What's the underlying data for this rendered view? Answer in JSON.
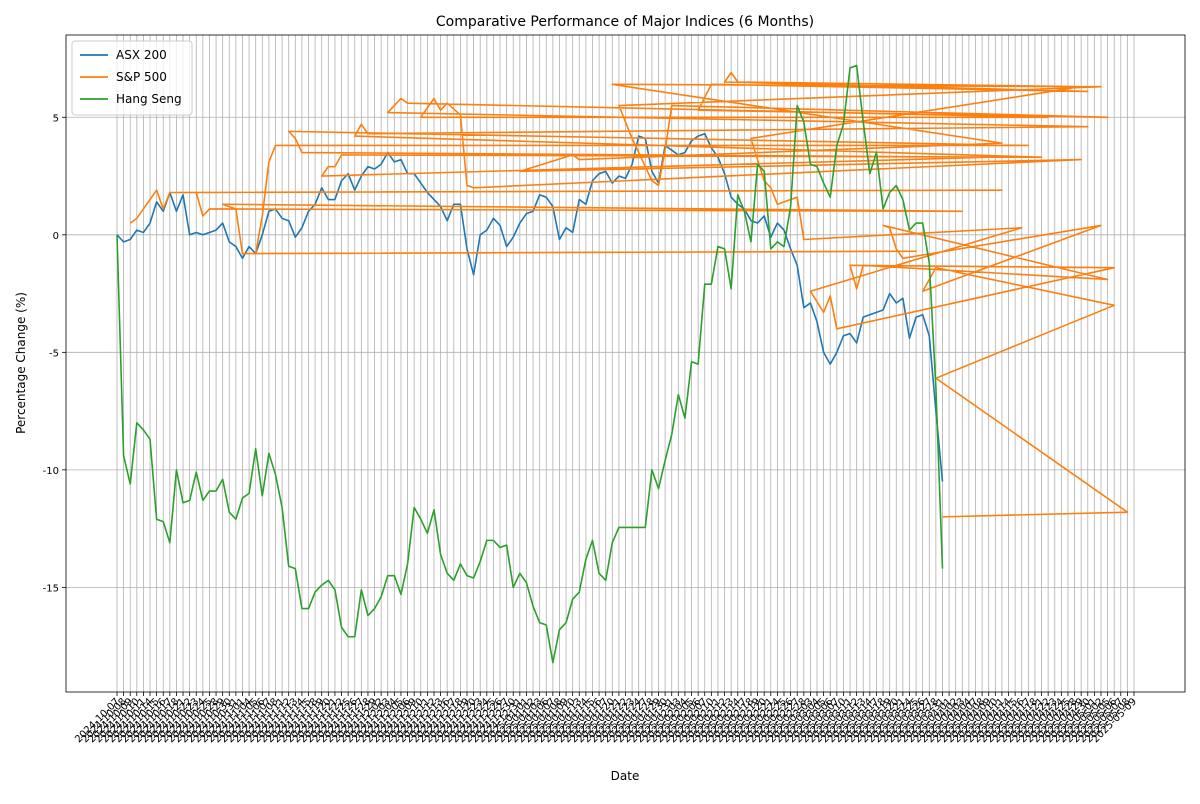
{
  "chart_data": {
    "type": "line",
    "title": "Comparative Performance of Major Indices (6 Months)",
    "x_label": "Date",
    "y_label": "Percentage Change (%)",
    "categories": [
      "2024-10-07",
      "2024-10-08",
      "2024-10-09",
      "2024-10-10",
      "2024-10-11",
      "2024-10-14",
      "2024-10-15",
      "2024-10-16",
      "2024-10-17",
      "2024-10-18",
      "2024-10-21",
      "2024-10-22",
      "2024-10-23",
      "2024-10-24",
      "2024-10-25",
      "2024-10-28",
      "2024-10-29",
      "2024-10-30",
      "2024-10-31",
      "2024-11-01",
      "2024-11-04",
      "2024-11-05",
      "2024-11-06",
      "2024-11-07",
      "2024-11-08",
      "2024-11-11",
      "2024-11-12",
      "2024-11-13",
      "2024-11-14",
      "2024-11-15",
      "2024-11-18",
      "2024-11-19",
      "2024-11-20",
      "2024-11-21",
      "2024-11-22",
      "2024-11-25",
      "2024-11-26",
      "2024-11-27",
      "2024-11-28",
      "2024-11-29",
      "2024-12-02",
      "2024-12-03",
      "2024-12-04",
      "2024-12-05",
      "2024-12-06",
      "2024-12-09",
      "2024-12-10",
      "2024-12-11",
      "2024-12-12",
      "2024-12-13",
      "2024-12-16",
      "2024-12-17",
      "2024-12-18",
      "2024-12-19",
      "2024-12-20",
      "2024-12-23",
      "2024-12-24",
      "2024-12-25",
      "2024-12-26",
      "2024-12-27",
      "2024-12-30",
      "2024-12-31",
      "2025-01-01",
      "2025-01-02",
      "2025-01-03",
      "2025-01-06",
      "2025-01-07",
      "2025-01-08",
      "2025-01-09",
      "2025-01-10",
      "2025-01-13",
      "2025-01-14",
      "2025-01-15",
      "2025-01-16",
      "2025-01-17",
      "2025-01-20",
      "2025-01-21",
      "2025-01-22",
      "2025-01-23",
      "2025-01-24",
      "2025-01-27",
      "2025-01-28",
      "2025-01-29",
      "2025-01-30",
      "2025-01-31",
      "2025-02-03",
      "2025-02-04",
      "2025-02-05",
      "2025-02-06",
      "2025-02-07",
      "2025-02-10",
      "2025-02-11",
      "2025-02-12",
      "2025-02-13",
      "2025-02-14",
      "2025-02-17",
      "2025-02-18",
      "2025-02-19",
      "2025-02-20",
      "2025-02-21",
      "2025-02-24",
      "2025-02-25",
      "2025-02-26",
      "2025-02-27",
      "2025-02-28",
      "2025-03-03",
      "2025-03-04",
      "2025-03-05",
      "2025-03-06",
      "2025-03-07",
      "2025-03-10",
      "2025-03-11",
      "2025-03-12",
      "2025-03-13",
      "2025-03-14",
      "2025-03-17",
      "2025-03-18",
      "2025-03-19",
      "2025-03-20",
      "2025-03-21",
      "2025-03-24",
      "2025-03-25",
      "2025-03-26",
      "2025-03-27",
      "2025-03-28",
      "2025-03-31",
      "2025-04-01",
      "2025-04-02",
      "2025-04-03",
      "2025-04-04",
      "2025-04-07",
      "2025-04-08",
      "2025-04-09",
      "2025-04-10",
      "2025-04-11",
      "2025-04-14",
      "2025-04-15",
      "2025-04-16",
      "2025-04-17",
      "2025-04-18",
      "2025-04-21",
      "2025-04-22",
      "2025-04-23",
      "2025-04-24",
      "2025-04-25",
      "2025-04-28",
      "2025-04-29",
      "2025-04-30",
      "2025-05-01",
      "2025-05-02",
      "2025-05-05",
      "2025-05-06",
      "2025-05-07",
      "2025-05-08",
      "2025-05-09"
    ],
    "series": [
      {
        "name": "ASX 200",
        "color": "#1f77b4",
        "values": [
          0,
          -0.3,
          -0.2,
          0.2,
          0.1,
          0.5,
          1.4,
          1.0,
          1.8,
          1.0,
          1.7,
          0.0,
          0.1,
          0.0,
          0.1,
          0.2,
          0.5,
          -0.3,
          -0.5,
          -1.0,
          -0.5,
          -0.8,
          0.0,
          1.0,
          1.1,
          0.7,
          0.6,
          -0.1,
          0.3,
          1.0,
          1.3,
          2.0,
          1.5,
          1.5,
          2.3,
          2.6,
          1.9,
          2.5,
          2.9,
          2.8,
          3.0,
          3.5,
          3.1,
          3.2,
          2.6,
          2.6,
          2.2,
          1.8,
          1.5,
          1.2,
          0.6,
          1.3,
          1.3,
          -0.6,
          -1.7,
          0.0,
          0.2,
          0.7,
          0.4,
          -0.5,
          -0.1,
          0.5,
          0.9,
          1.0,
          1.7,
          1.6,
          1.2,
          -0.2,
          0.3,
          0.1,
          1.5,
          1.3,
          2.3,
          2.6,
          2.7,
          2.2,
          2.5,
          2.4,
          3.0,
          4.2,
          4.1,
          2.7,
          2.2,
          3.8,
          3.6,
          3.4,
          3.5,
          4.0,
          4.2,
          4.3,
          3.7,
          3.3,
          2.6,
          1.6,
          1.3,
          1.1,
          0.6,
          0.5,
          0.8,
          -0.1,
          0.5,
          0.2,
          -0.6,
          -1.3,
          -3.1,
          -2.9,
          -3.7,
          -5.0,
          -5.5,
          -5.0,
          -4.3,
          -4.2,
          -4.6,
          -3.5,
          -3.4,
          -3.3,
          -3.2,
          -2.5,
          -2.9,
          -2.7,
          -4.4,
          -3.5,
          -3.4,
          -4.3,
          -7.5,
          -10.5,
          null,
          null,
          null,
          null,
          null,
          null,
          null,
          null,
          null,
          null,
          null,
          null,
          null,
          null,
          null,
          null,
          null,
          null,
          null,
          null,
          null,
          null,
          null,
          null,
          null,
          null,
          null,
          null,
          null
        ]
      },
      {
        "name": "S&P 500",
        "color": "#ff7f0e",
        "x": [
          "2024-10-09",
          "2024-10-10",
          "2024-10-15",
          "2024-10-16",
          "2024-10-17",
          "2025-04-11",
          "2024-10-23",
          "2024-10-24",
          "2024-10-25",
          "2025-04-03",
          "2024-10-29",
          "2024-10-31",
          "2024-11-01",
          "2025-03-25",
          "2024-11-05",
          "2024-11-06",
          "2024-11-07",
          "2024-11-08",
          "2025-04-17",
          "2024-11-12",
          "2024-11-13",
          "2024-11-14",
          "2025-04-09",
          "2024-11-19",
          "2024-11-20",
          "2024-11-21",
          "2024-11-22",
          "2025-04-21",
          "2024-11-26",
          "2024-11-27",
          "2024-11-28",
          "2025-04-30",
          "2024-12-03",
          "2024-12-05",
          "2024-12-06",
          "2025-04-22",
          "2024-12-10",
          "2024-12-12",
          "2024-12-13",
          "2024-12-16",
          "2024-12-18",
          "2024-12-19",
          "2024-12-20",
          "2025-04-29",
          "2024-12-31",
          "2025-01-10",
          "2025-01-13",
          "2025-04-11",
          "2025-01-20",
          "2025-05-02",
          "2025-01-21",
          "2025-01-23",
          "2025-01-28",
          "2025-01-29",
          "2025-01-30",
          "2025-01-31",
          "2025-05-05",
          "2025-02-06",
          "2025-02-10",
          "2025-04-30",
          "2025-02-12",
          "2025-02-13",
          "2025-02-14",
          "2025-04-29",
          "2025-02-18",
          "2025-02-20",
          "2025-02-21",
          "2025-02-24",
          "2025-02-25",
          "2025-02-27",
          "2025-02-28",
          "2025-04-16",
          "2025-03-03",
          "2025-03-05",
          "2025-03-06",
          "2025-03-07",
          "2025-05-06",
          "2025-03-11",
          "2025-03-12",
          "2025-03-13",
          "2025-05-05",
          "2025-03-18",
          "2025-03-19",
          "2025-03-20",
          "2025-03-21",
          "2025-05-02",
          "2025-03-26",
          "2025-03-28",
          "2025-05-06",
          "2025-03-28",
          "2025-05-08",
          "2025-03-31"
        ],
        "values": [
          0.5,
          0.7,
          1.9,
          1.1,
          1.8,
          1.9,
          1.8,
          0.8,
          1.1,
          1.0,
          1.3,
          1.1,
          -0.8,
          -0.7,
          -0.8,
          0.8,
          3.1,
          3.8,
          3.8,
          4.4,
          4.1,
          3.5,
          3.3,
          2.5,
          2.9,
          2.9,
          3.4,
          3.3,
          4.2,
          4.7,
          4.3,
          4.6,
          5.2,
          5.8,
          5.6,
          5.0,
          5.0,
          5.8,
          5.3,
          5.6,
          5.1,
          2.1,
          2.0,
          3.2,
          2.7,
          3.4,
          3.2,
          3.9,
          6.4,
          6.3,
          5.5,
          4.1,
          2.3,
          2.1,
          3.6,
          5.5,
          5.0,
          5.3,
          6.4,
          6.1,
          6.5,
          6.9,
          6.5,
          6.3,
          4.1,
          2.3,
          2.0,
          1.3,
          1.4,
          1.6,
          -0.2,
          0.3,
          -2.4,
          -3.3,
          -2.6,
          -4.0,
          -1.4,
          -1.3,
          -2.3,
          -1.3,
          -1.9,
          0.4,
          0.3,
          -0.6,
          -1.0,
          0.4,
          -2.4,
          -1.4,
          -3.0,
          -6.1,
          -11.8,
          -12.0
        ]
      },
      {
        "name": "Hang Seng",
        "color": "#2ca02c",
        "values": [
          0,
          -9.4,
          -10.6,
          -8.0,
          -8.3,
          -8.7,
          -12.1,
          -12.2,
          -13.1,
          -10.0,
          -11.4,
          -11.3,
          -10.1,
          -11.3,
          -10.9,
          -10.9,
          -10.4,
          -11.8,
          -12.1,
          -11.2,
          -11.0,
          -9.1,
          -11.1,
          -9.3,
          -10.2,
          -11.6,
          -14.1,
          -14.2,
          -15.9,
          -15.9,
          -15.2,
          -14.9,
          -14.7,
          -15.1,
          -16.7,
          -17.1,
          -17.1,
          -15.1,
          -16.2,
          -15.9,
          -15.4,
          -14.5,
          -14.5,
          -15.3,
          -14.0,
          -11.6,
          -12.1,
          -12.7,
          -11.7,
          -13.6,
          -14.4,
          -14.7,
          -14.0,
          -14.5,
          -14.6,
          -13.9,
          -13.0,
          -13.0,
          -13.3,
          -13.2,
          -15.0,
          -14.4,
          -14.8,
          -15.8,
          -16.5,
          -16.6,
          -18.2,
          -16.8,
          -16.5,
          -15.5,
          -15.2,
          -13.8,
          -13.0,
          -14.4,
          -14.7,
          -13.1,
          -12.45,
          -12.45,
          -12.45,
          -12.45,
          -12.45,
          -10.0,
          -10.8,
          -9.6,
          -8.5,
          -6.8,
          -7.8,
          -5.4,
          -5.5,
          -2.1,
          -2.1,
          -0.5,
          -0.6,
          -2.3,
          1.7,
          1.0,
          -0.3,
          3.0,
          2.7,
          -0.6,
          -0.3,
          -0.5,
          1.2,
          5.5,
          4.8,
          3.0,
          2.9,
          2.2,
          1.6,
          3.8,
          4.7,
          7.1,
          7.2,
          4.8,
          2.6,
          3.5,
          1.1,
          1.8,
          2.1,
          1.5,
          0.2,
          0.5,
          0.5,
          -1.2,
          -6.5,
          -14.2,
          null,
          null,
          null,
          null,
          null,
          null,
          null,
          null,
          null,
          null,
          null,
          null,
          null,
          null,
          null,
          null,
          null,
          null,
          null,
          null,
          null,
          null,
          null,
          null,
          null,
          null,
          null,
          null,
          null
        ]
      }
    ],
    "ylim": [
      -19.45,
      8.5
    ],
    "yticks": [
      -15,
      -10,
      -5,
      0,
      5
    ],
    "grid": true,
    "legend": "upper left"
  }
}
